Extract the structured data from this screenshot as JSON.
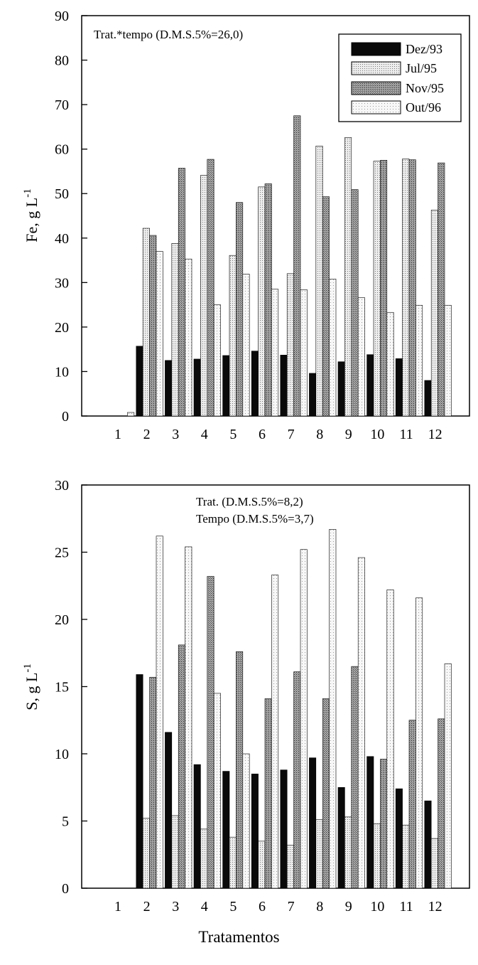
{
  "colors": {
    "Dez/93": "#0a0a0a",
    "Jul/95": "#ececec",
    "Nov/95": "#9c9c9c",
    "Out/96": "#f6f6f6"
  },
  "x_title": "Tratamentos",
  "chart_data": [
    {
      "type": "bar",
      "ylabel": "Fe, g L",
      "ylabel_sup": "-1",
      "annotation": "Trat.*tempo (D.M.S.5%=26,0)",
      "legend_position": "top-right",
      "ylim": [
        0,
        90
      ],
      "yticks": [
        "0",
        "10",
        "20",
        "30",
        "40",
        "50",
        "60",
        "70",
        "80",
        "90"
      ],
      "categories": [
        "1",
        "2",
        "3",
        "4",
        "5",
        "6",
        "7",
        "8",
        "9",
        "10",
        "11",
        "12"
      ],
      "series": [
        {
          "name": "Dez/93",
          "values": [
            0,
            15.7,
            12.5,
            12.8,
            13.6,
            14.6,
            13.7,
            9.6,
            12.2,
            13.8,
            12.9,
            8.0
          ]
        },
        {
          "name": "Jul/95",
          "values": [
            0,
            42.2,
            38.8,
            54.1,
            36.1,
            51.5,
            32.0,
            60.7,
            62.6,
            57.3,
            57.8,
            46.3
          ]
        },
        {
          "name": "Nov/95",
          "values": [
            0,
            40.6,
            55.7,
            57.7,
            48.0,
            52.2,
            67.5,
            49.3,
            50.9,
            57.5,
            57.6,
            56.9
          ]
        },
        {
          "name": "Out/96",
          "values": [
            0.8,
            37.0,
            35.3,
            25.0,
            31.9,
            28.5,
            28.4,
            30.8,
            26.6,
            23.3,
            24.9,
            24.9
          ]
        }
      ]
    },
    {
      "type": "bar",
      "ylabel": "S, g L",
      "ylabel_sup": "-1",
      "annotation_lines": [
        "Trat. (D.M.S.5%=8,2)",
        "Tempo (D.M.S.5%=3,7)"
      ],
      "ylim": [
        0,
        30
      ],
      "yticks": [
        "0",
        "5",
        "10",
        "15",
        "20",
        "25",
        "30"
      ],
      "categories": [
        "1",
        "2",
        "3",
        "4",
        "5",
        "6",
        "7",
        "8",
        "9",
        "10",
        "11",
        "12"
      ],
      "series": [
        {
          "name": "Dez/93",
          "values": [
            0,
            15.9,
            11.6,
            9.2,
            8.7,
            8.5,
            8.8,
            9.7,
            7.5,
            9.8,
            7.4,
            6.5
          ]
        },
        {
          "name": "Jul/95",
          "values": [
            0,
            5.2,
            5.4,
            4.4,
            3.8,
            3.5,
            3.2,
            5.1,
            5.3,
            4.8,
            4.7,
            3.7
          ]
        },
        {
          "name": "Nov/95",
          "values": [
            0,
            15.7,
            18.1,
            23.2,
            17.6,
            14.1,
            16.1,
            14.1,
            16.5,
            9.6,
            12.5,
            12.6
          ]
        },
        {
          "name": "Out/96",
          "values": [
            0,
            26.2,
            25.4,
            14.5,
            10.0,
            23.3,
            25.2,
            26.7,
            24.6,
            22.2,
            21.6,
            16.7
          ]
        }
      ]
    }
  ]
}
